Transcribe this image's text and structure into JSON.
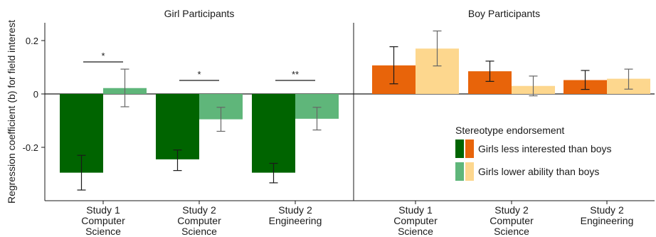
{
  "chart_data": {
    "type": "bar",
    "ylabel": "Regression coefficient (b) for field interest",
    "ylim": [
      -0.4,
      0.26
    ],
    "yticks": [
      {
        "value": 0.2,
        "label": "0.2"
      },
      {
        "value": 0,
        "label": "0"
      },
      {
        "value": -0.2,
        "label": "-0.2"
      }
    ],
    "colors": {
      "girl_interest": "#006400",
      "girl_ability": "#5fb67a",
      "boy_interest": "#e8640a",
      "boy_ability": "#fdd78e"
    },
    "panels": [
      {
        "title": "Girl Participants",
        "categories": [
          [
            "Study 1",
            "Computer",
            "Science"
          ],
          [
            "Study 2",
            "Computer",
            "Science"
          ],
          [
            "Study 2",
            "Engineering"
          ]
        ],
        "series": [
          {
            "name": "Girls less interested than boys",
            "color_key": "girl_interest",
            "values": [
              -0.295,
              -0.245,
              -0.295
            ],
            "err_low": [
              -0.36,
              -0.287,
              -0.333
            ],
            "err_high": [
              -0.23,
              -0.21,
              -0.26
            ]
          },
          {
            "name": "Girls lower ability than boys",
            "color_key": "girl_ability",
            "values": [
              0.022,
              -0.095,
              -0.093
            ],
            "err_low": [
              -0.048,
              -0.14,
              -0.135
            ],
            "err_high": [
              0.093,
              -0.05,
              -0.05
            ]
          }
        ],
        "significance": [
          "*",
          "*",
          "**"
        ]
      },
      {
        "title": "Boy Participants",
        "categories": [
          [
            "Study 1",
            "Computer",
            "Science"
          ],
          [
            "Study 2",
            "Computer",
            "Science"
          ],
          [
            "Study 2",
            "Engineering"
          ]
        ],
        "series": [
          {
            "name": "Girls less interested than boys",
            "color_key": "boy_interest",
            "values": [
              0.107,
              0.085,
              0.052
            ],
            "err_low": [
              0.038,
              0.047,
              0.017
            ],
            "err_high": [
              0.177,
              0.123,
              0.088
            ]
          },
          {
            "name": "Girls lower ability than boys",
            "color_key": "boy_ability",
            "values": [
              0.17,
              0.03,
              0.057
            ],
            "err_low": [
              0.105,
              -0.007,
              0.018
            ],
            "err_high": [
              0.236,
              0.067,
              0.093
            ]
          }
        ],
        "significance": [
          "",
          "",
          ""
        ]
      }
    ],
    "legend": {
      "title": "Stereotype endorsement",
      "placement": "bottom-right of right panel",
      "entries": [
        {
          "label": "Girls less interested than boys",
          "color_keys": [
            "girl_interest",
            "boy_interest"
          ]
        },
        {
          "label": "Girls lower ability than boys",
          "color_keys": [
            "girl_ability",
            "boy_ability"
          ]
        }
      ]
    }
  }
}
